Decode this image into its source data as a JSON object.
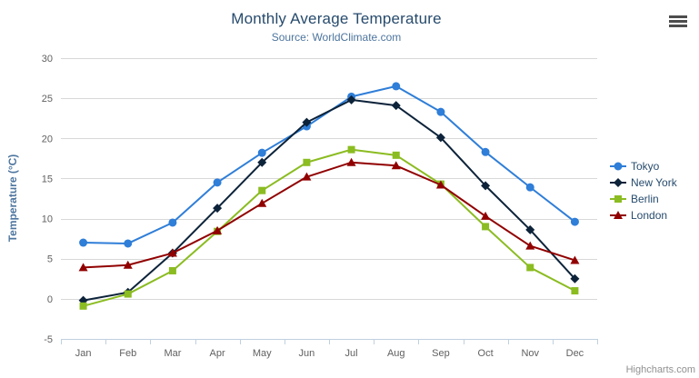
{
  "credits": "Highcharts.com",
  "menu": {
    "tooltip": "Chart context menu"
  },
  "chart_data": {
    "type": "line",
    "title": "Monthly Average Temperature",
    "subtitle": "Source: WorldClimate.com",
    "xlabel": "",
    "ylabel": "Temperature (°C)",
    "ylim": [
      -5,
      30
    ],
    "ytick_interval": 5,
    "grid": true,
    "legend_position": "right",
    "categories": [
      "Jan",
      "Feb",
      "Mar",
      "Apr",
      "May",
      "Jun",
      "Jul",
      "Aug",
      "Sep",
      "Oct",
      "Nov",
      "Dec"
    ],
    "series": [
      {
        "name": "Tokyo",
        "color": "#2f7ed8",
        "marker": "circle",
        "values": [
          7.0,
          6.9,
          9.5,
          14.5,
          18.2,
          21.5,
          25.2,
          26.5,
          23.3,
          18.3,
          13.9,
          9.6
        ]
      },
      {
        "name": "New York",
        "color": "#0d233a",
        "marker": "diamond",
        "values": [
          -0.2,
          0.8,
          5.7,
          11.3,
          17.0,
          22.0,
          24.8,
          24.1,
          20.1,
          14.1,
          8.6,
          2.5
        ]
      },
      {
        "name": "Berlin",
        "color": "#8bbc21",
        "marker": "square",
        "values": [
          -0.9,
          0.6,
          3.5,
          8.4,
          13.5,
          17.0,
          18.6,
          17.9,
          14.3,
          9.0,
          3.9,
          1.0
        ]
      },
      {
        "name": "London",
        "color": "#910000",
        "marker": "triangle",
        "values": [
          3.9,
          4.2,
          5.7,
          8.5,
          11.9,
          15.2,
          17.0,
          16.6,
          14.2,
          10.3,
          6.6,
          4.8
        ]
      }
    ],
    "axis_style": {
      "grid_color": "#d8d8d8",
      "axis_line_color": "#c0d0e0",
      "tick_label_color": "#606060"
    }
  }
}
